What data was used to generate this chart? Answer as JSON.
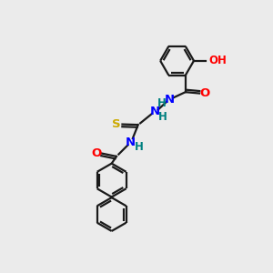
{
  "background_color": "#ebebeb",
  "bond_color": "#1a1a1a",
  "atom_colors": {
    "O": "#ff0000",
    "N": "#0000ff",
    "S": "#ccaa00",
    "C": "#1a1a1a",
    "H": "#008080"
  },
  "ring_r": 0.62,
  "lw": 1.6,
  "font_size": 8.5,
  "figsize": [
    3.0,
    3.0
  ],
  "dpi": 100
}
